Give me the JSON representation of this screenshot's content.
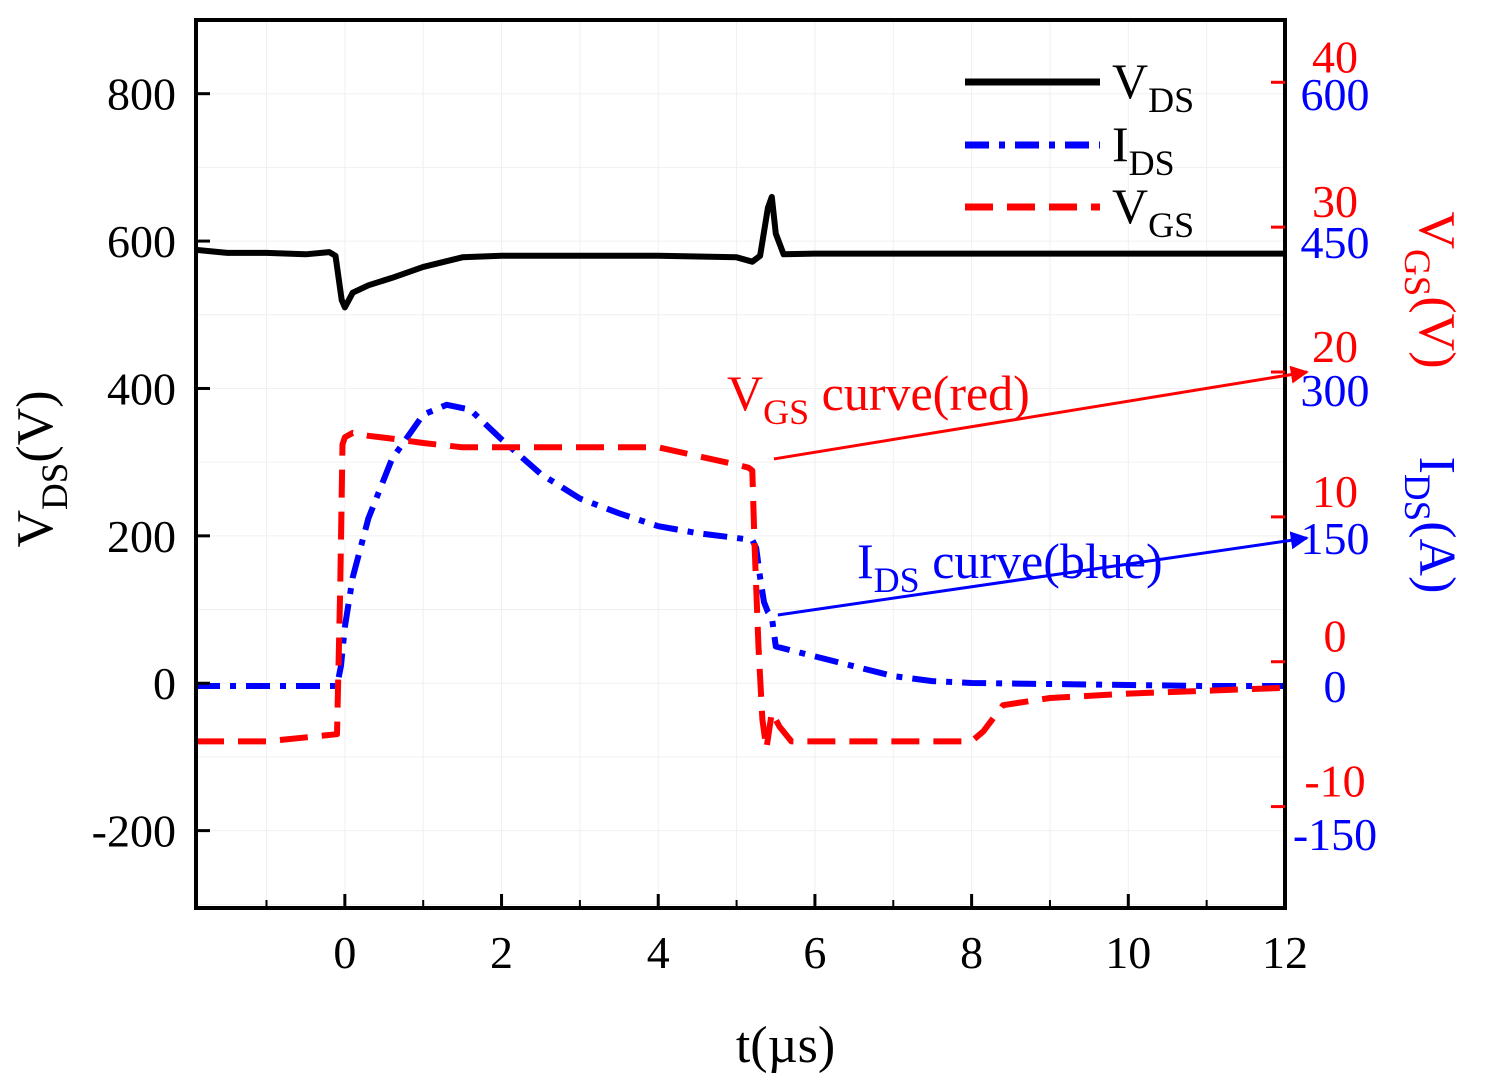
{
  "chart_data": {
    "type": "line",
    "title": "",
    "xlabel": "t(µs)",
    "xlim": [
      -1.9,
      12
    ],
    "xticks": [
      "0",
      "2",
      "4",
      "6",
      "8",
      "10",
      "12"
    ],
    "xtick_values": [
      0,
      2,
      4,
      6,
      8,
      10,
      12
    ],
    "grid": true,
    "axes": {
      "left": {
        "label_main": "V",
        "label_sub": "DS",
        "label_tail": "(V)",
        "ylim": [
          -305,
          900
        ],
        "ticks": [
          "-200",
          "0",
          "200",
          "400",
          "600",
          "800"
        ],
        "tick_values": [
          -200,
          0,
          200,
          400,
          600,
          800
        ],
        "color": "#000000"
      },
      "right_vgs": {
        "label_main": "V",
        "label_sub": "GS",
        "label_tail": "(V)",
        "ylim": [
          -17.0,
          44.3
        ],
        "ticks": [
          "-10",
          "0",
          "10",
          "20",
          "30",
          "40"
        ],
        "tick_values": [
          -10,
          0,
          10,
          20,
          30,
          40
        ],
        "color": "#ff0000"
      },
      "right_ids": {
        "label_main": "I",
        "label_sub": "DS",
        "label_tail": "(A)",
        "ylim": [
          -225,
          675
        ],
        "ticks": [
          "-150",
          "0",
          "150",
          "300",
          "450",
          "600"
        ],
        "tick_values": [
          -150,
          0,
          150,
          300,
          450,
          600
        ],
        "color": "#0000ff"
      }
    },
    "series": [
      {
        "name": "VDS",
        "sub": "DS",
        "axis": "left",
        "color": "#000000",
        "style": "solid",
        "x": [
          -1.9,
          -1.5,
          -1.0,
          -0.5,
          -0.2,
          -0.12,
          -0.08,
          -0.04,
          0.0,
          0.1,
          0.3,
          0.6,
          1.0,
          1.5,
          2.0,
          3.0,
          4.0,
          5.0,
          5.2,
          5.3,
          5.4,
          5.45,
          5.5,
          5.6,
          6.0,
          8.0,
          10.0,
          12.0
        ],
        "values": [
          588,
          584,
          584,
          582,
          585,
          580,
          550,
          520,
          510,
          530,
          540,
          550,
          565,
          578,
          580,
          580,
          580,
          578,
          572,
          580,
          645,
          660,
          610,
          582,
          583,
          583,
          583,
          583
        ]
      },
      {
        "name": "IDS",
        "sub": "DS",
        "axis": "right_ids",
        "color": "#0000ff",
        "style": "dashdot",
        "x": [
          -1.9,
          -1.0,
          -0.1,
          -0.05,
          0.0,
          0.1,
          0.3,
          0.6,
          1.0,
          1.3,
          1.6,
          2.0,
          2.5,
          3.0,
          3.5,
          4.0,
          4.5,
          5.0,
          5.2,
          5.25,
          5.3,
          5.35,
          5.4,
          5.45,
          5.5,
          6.0,
          6.5,
          7.0,
          7.5,
          8.0,
          9.0,
          10.0,
          11.0,
          12.0
        ],
        "values": [
          0,
          0,
          0,
          20,
          60,
          110,
          170,
          230,
          275,
          285,
          280,
          250,
          215,
          190,
          175,
          162,
          155,
          150,
          148,
          140,
          110,
          85,
          75,
          70,
          40,
          30,
          20,
          10,
          5,
          3,
          2,
          1,
          0,
          0
        ]
      },
      {
        "name": "VGS",
        "sub": "GS",
        "axis": "right_vgs",
        "color": "#ff0000",
        "style": "dashed",
        "x": [
          -1.9,
          -1.0,
          -0.1,
          -0.06,
          -0.03,
          0.0,
          0.1,
          0.3,
          0.6,
          1.0,
          1.5,
          2.0,
          3.0,
          4.0,
          4.5,
          5.0,
          5.15,
          5.2,
          5.23,
          5.28,
          5.33,
          5.38,
          5.45,
          5.55,
          5.7,
          6.0,
          7.0,
          8.0,
          8.15,
          8.4,
          9.0,
          10.0,
          11.0,
          12.0
        ],
        "values": [
          -5.5,
          -5.5,
          -5.0,
          5.0,
          15.0,
          15.5,
          15.8,
          15.6,
          15.4,
          15.1,
          14.8,
          14.8,
          14.8,
          14.8,
          14.2,
          13.6,
          13.4,
          13.2,
          8.0,
          1.0,
          -4.0,
          -6.0,
          -3.5,
          -4.5,
          -5.5,
          -5.5,
          -5.5,
          -5.5,
          -4.8,
          -3.0,
          -2.5,
          -2.2,
          -2.0,
          -1.8
        ]
      }
    ],
    "legend": {
      "position": "top-right",
      "entries": [
        {
          "main": "V",
          "sub": "DS"
        },
        {
          "main": "I",
          "sub": "DS"
        },
        {
          "main": "V",
          "sub": "GS"
        }
      ]
    },
    "annotations": [
      {
        "main": "V",
        "sub": "GS",
        "tail": " curve(red)",
        "color": "#ff0000",
        "from_x": 5.4,
        "from_value": 14.0,
        "from_axis": "right_vgs",
        "to_axis": "right_vgs",
        "to_value": 20.0
      },
      {
        "main": "I",
        "sub": "DS",
        "tail": " curve(blue)",
        "color": "#0000ff",
        "from_x": 5.45,
        "from_value": 72,
        "from_axis": "right_ids",
        "to_axis": "right_ids",
        "to_value": 150
      }
    ]
  }
}
